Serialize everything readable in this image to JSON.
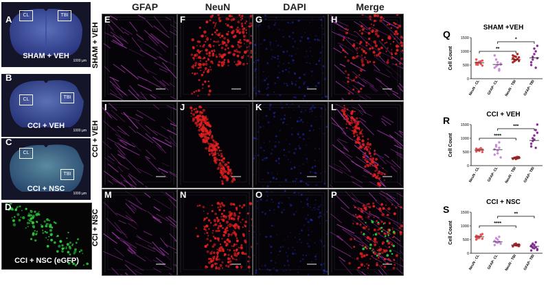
{
  "columns": {
    "gfap": "GFAP",
    "neun": "NeuN",
    "dapi": "DAPI",
    "merge": "Merge"
  },
  "rows": {
    "r1": "SHAM + VEH",
    "r2": "CCI + VEH",
    "r3": "CCI + NSC"
  },
  "brains": {
    "a": {
      "letter": "A",
      "label": "SHAM + VEH",
      "cl": "CL",
      "tbi": "TBI",
      "scale": "1000 µm"
    },
    "b": {
      "letter": "B",
      "label": "CCI + VEH",
      "cl": "CL",
      "tbi": "TBI",
      "scale": "1000 µm"
    },
    "c": {
      "letter": "C",
      "label": "CCI + NSC",
      "cl": "CL",
      "tbi": "TBI",
      "scale": "1000 µm"
    },
    "d": {
      "letter": "D",
      "label": "CCI + NSC (eGFP)"
    }
  },
  "tiles": {
    "e": "E",
    "f": "F",
    "g": "G",
    "h": "H",
    "i": "I",
    "j": "J",
    "k": "K",
    "l": "L",
    "m": "M",
    "n": "N",
    "o": "O",
    "p": "P"
  },
  "colors": {
    "gfap": "#c040c8",
    "neun": "#e02020",
    "dapi": "#2030c0",
    "egfp": "#30d040",
    "neun_dot": "#e8555a",
    "gfap_dot": "#cc88dd",
    "tbi_gfap_dot": "#8a2a9a",
    "tbi_neun_dot": "#b02525"
  },
  "chart_data": [
    {
      "letter": "Q",
      "type": "scatter",
      "title": "SHAM +VEH",
      "ylabel": "Cell Count",
      "ylim": [
        0,
        1500
      ],
      "yticks": [
        "0",
        "500",
        "1000",
        "1500"
      ],
      "categories": [
        "NeuN - CL",
        "GFAP- CL",
        "NeuN - TBI",
        "GFAP- TBI"
      ],
      "means": [
        580,
        520,
        700,
        760
      ],
      "points": [
        [
          520,
          560,
          600,
          640,
          480,
          700,
          580,
          620,
          540,
          660,
          590,
          510
        ],
        [
          400,
          700,
          500,
          300,
          550,
          850,
          450,
          600,
          350,
          520
        ],
        [
          600,
          700,
          800,
          900,
          650,
          750,
          820,
          680,
          720,
          780,
          850,
          640
        ],
        [
          500,
          700,
          900,
          1000,
          1200,
          600,
          800,
          1100,
          400,
          750
        ]
      ],
      "brackets": [
        {
          "from": 0,
          "to": 2,
          "label": "**",
          "y": 1000
        },
        {
          "from": 1,
          "to": 3,
          "label": "*",
          "y": 1350
        }
      ]
    },
    {
      "letter": "R",
      "type": "scatter",
      "title": "CCI + VEH",
      "ylabel": "Cell Count",
      "ylim": [
        0,
        1500
      ],
      "yticks": [
        "0",
        "500",
        "1000",
        "1500"
      ],
      "categories": [
        "NeuN - CL",
        "GFAP- CL",
        "NeuN - TBI",
        "GFAP- TBI"
      ],
      "means": [
        570,
        580,
        280,
        920
      ],
      "points": [
        [
          520,
          560,
          600,
          640,
          500,
          620,
          580,
          540,
          610,
          590
        ],
        [
          400,
          700,
          550,
          850,
          300,
          600,
          750,
          450,
          650
        ],
        [
          250,
          280,
          300,
          270,
          310,
          260,
          290,
          240,
          320,
          280
        ],
        [
          700,
          900,
          1100,
          1300,
          1500,
          800,
          1000,
          950,
          650,
          1200
        ]
      ],
      "brackets": [
        {
          "from": 0,
          "to": 2,
          "label": "****",
          "y": 1000
        },
        {
          "from": 1,
          "to": 3,
          "label": "***",
          "y": 1350
        }
      ]
    },
    {
      "letter": "S",
      "type": "scatter",
      "title": "CCI + NSC",
      "ylabel": "Cell Count",
      "ylim": [
        0,
        1500
      ],
      "yticks": [
        "0",
        "500",
        "1000",
        "1500"
      ],
      "categories": [
        "NeuN - CL",
        "GFAP- CL",
        "NeuN - TBI",
        "GFAP- TBI"
      ],
      "means": [
        600,
        420,
        300,
        250
      ],
      "points": [
        [
          500,
          550,
          600,
          650,
          700,
          580,
          620,
          560,
          680,
          530,
          640,
          610
        ],
        [
          300,
          400,
          500,
          600,
          350,
          450,
          550,
          380,
          420
        ],
        [
          250,
          300,
          350,
          280,
          320,
          270,
          330,
          290,
          310,
          260
        ],
        [
          100,
          200,
          300,
          400,
          150,
          250,
          350,
          180,
          220,
          120,
          280,
          330
        ]
      ],
      "brackets": [
        {
          "from": 0,
          "to": 2,
          "label": "****",
          "y": 1000
        },
        {
          "from": 1,
          "to": 3,
          "label": "**",
          "y": 1350
        }
      ]
    }
  ]
}
